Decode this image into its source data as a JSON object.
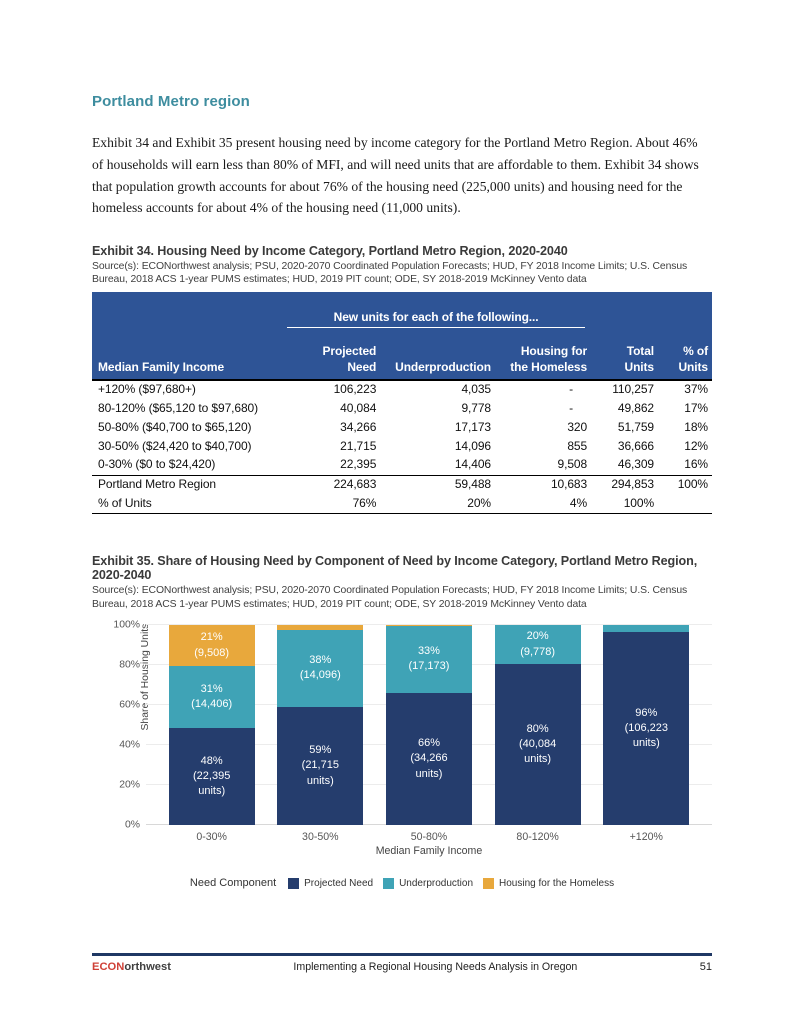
{
  "page": {
    "heading": "Portland Metro region",
    "paragraph": "Exhibit 34 and Exhibit 35 present housing need by income category for the Portland Metro Region. About 46% of households will earn less than 80% of MFI, and will need units that are affordable to them. Exhibit 34 shows that population growth accounts for about 76% of the housing need (225,000 units) and housing need for the homeless accounts for about 4% of the housing need (11,000 units).",
    "colors": {
      "heading_teal": "#3e8d9f",
      "table_header_bg": "#2e5496",
      "footer_rule": "#1f3864"
    }
  },
  "exhibit34": {
    "title": "Exhibit 34. Housing Need by Income Category, Portland Metro Region, 2020-2040",
    "source": "Source(s): ECONorthwest analysis; PSU, 2020-2070 Coordinated Population Forecasts; HUD, FY 2018 Income Limits; U.S. Census Bureau, 2018 ACS 1-year PUMS estimates; HUD, 2019 PIT count; ODE, SY 2018-2019 McKinney Vento data",
    "table": {
      "group_header": "New units for each of the following...",
      "columns": [
        "Median Family Income",
        "Projected\nNeed",
        "Underproduction",
        "Housing for\nthe Homeless",
        "Total Units",
        "% of Units"
      ],
      "rows": [
        [
          "+120% ($97,680+)",
          "106,223",
          "4,035",
          "-",
          "110,257",
          "37%"
        ],
        [
          "80-120% ($65,120 to $97,680)",
          "40,084",
          "9,778",
          "-",
          "49,862",
          "17%"
        ],
        [
          "50-80% ($40,700 to $65,120)",
          "34,266",
          "17,173",
          "320",
          "51,759",
          "18%"
        ],
        [
          "30-50% ($24,420 to $40,700)",
          "21,715",
          "14,096",
          "855",
          "36,666",
          "12%"
        ],
        [
          "0-30% ($0 to $24,420)",
          "22,395",
          "14,406",
          "9,508",
          "46,309",
          "16%"
        ]
      ],
      "total_row": [
        "Portland Metro Region",
        "224,683",
        "59,488",
        "10,683",
        "294,853",
        "100%"
      ],
      "pct_row": [
        "% of Units",
        "76%",
        "20%",
        "4%",
        "100%",
        ""
      ]
    }
  },
  "exhibit35": {
    "title": "Exhibit 35. Share of Housing Need by Component of Need by Income Category, Portland Metro Region, 2020-2040",
    "source": "Source(s): ECONorthwest analysis; PSU, 2020-2070 Coordinated Population Forecasts; HUD, FY 2018 Income Limits; U.S. Census Bureau, 2018 ACS 1-year PUMS estimates; HUD, 2019 PIT count; ODE, SY 2018-2019 McKinney Vento data"
  },
  "chart_data": {
    "type": "bar",
    "stacked": true,
    "categories": [
      "0-30%",
      "30-50%",
      "50-80%",
      "80-120%",
      "+120%"
    ],
    "series": [
      {
        "name": "Projected Need",
        "color": "#253d6d",
        "values": [
          48.4,
          59.2,
          66.2,
          80.4,
          96.3
        ],
        "units": [
          22395,
          21715,
          34266,
          40084,
          106223
        ],
        "labels": [
          "48%\n(22,395\nunits)",
          "59%\n(21,715\nunits)",
          "66%\n(34,266\nunits)",
          "80%\n(40,084\nunits)",
          "96%\n(106,223\nunits)"
        ]
      },
      {
        "name": "Underproduction",
        "color": "#3fa3b6",
        "values": [
          31.1,
          38.5,
          33.2,
          19.6,
          3.7
        ],
        "units": [
          14406,
          14096,
          17173,
          9778,
          4035
        ],
        "labels": [
          "31%\n(14,406)",
          "38%\n(14,096)",
          "33%\n(17,173)",
          "20%\n(9,778)",
          ""
        ]
      },
      {
        "name": "Housing for the Homeless",
        "color": "#e8a83c",
        "values": [
          20.5,
          2.3,
          0.6,
          0,
          0
        ],
        "units": [
          9508,
          855,
          320,
          0,
          0
        ],
        "labels": [
          "21%\n(9,508)",
          "",
          "",
          "",
          ""
        ]
      }
    ],
    "xlabel": "Median Family Income",
    "ylabel": "Share of Housing Units",
    "ylim": [
      0,
      100
    ],
    "yticks": [
      0,
      20,
      40,
      60,
      80,
      100
    ],
    "grid": true,
    "legend_title": "Need Component",
    "legend_position": "bottom"
  },
  "footer": {
    "logo_prefix": "ECON",
    "logo_suffix": "orthwest",
    "report_title": "Implementing a Regional Housing Needs Analysis in Oregon",
    "page_number": "51"
  }
}
